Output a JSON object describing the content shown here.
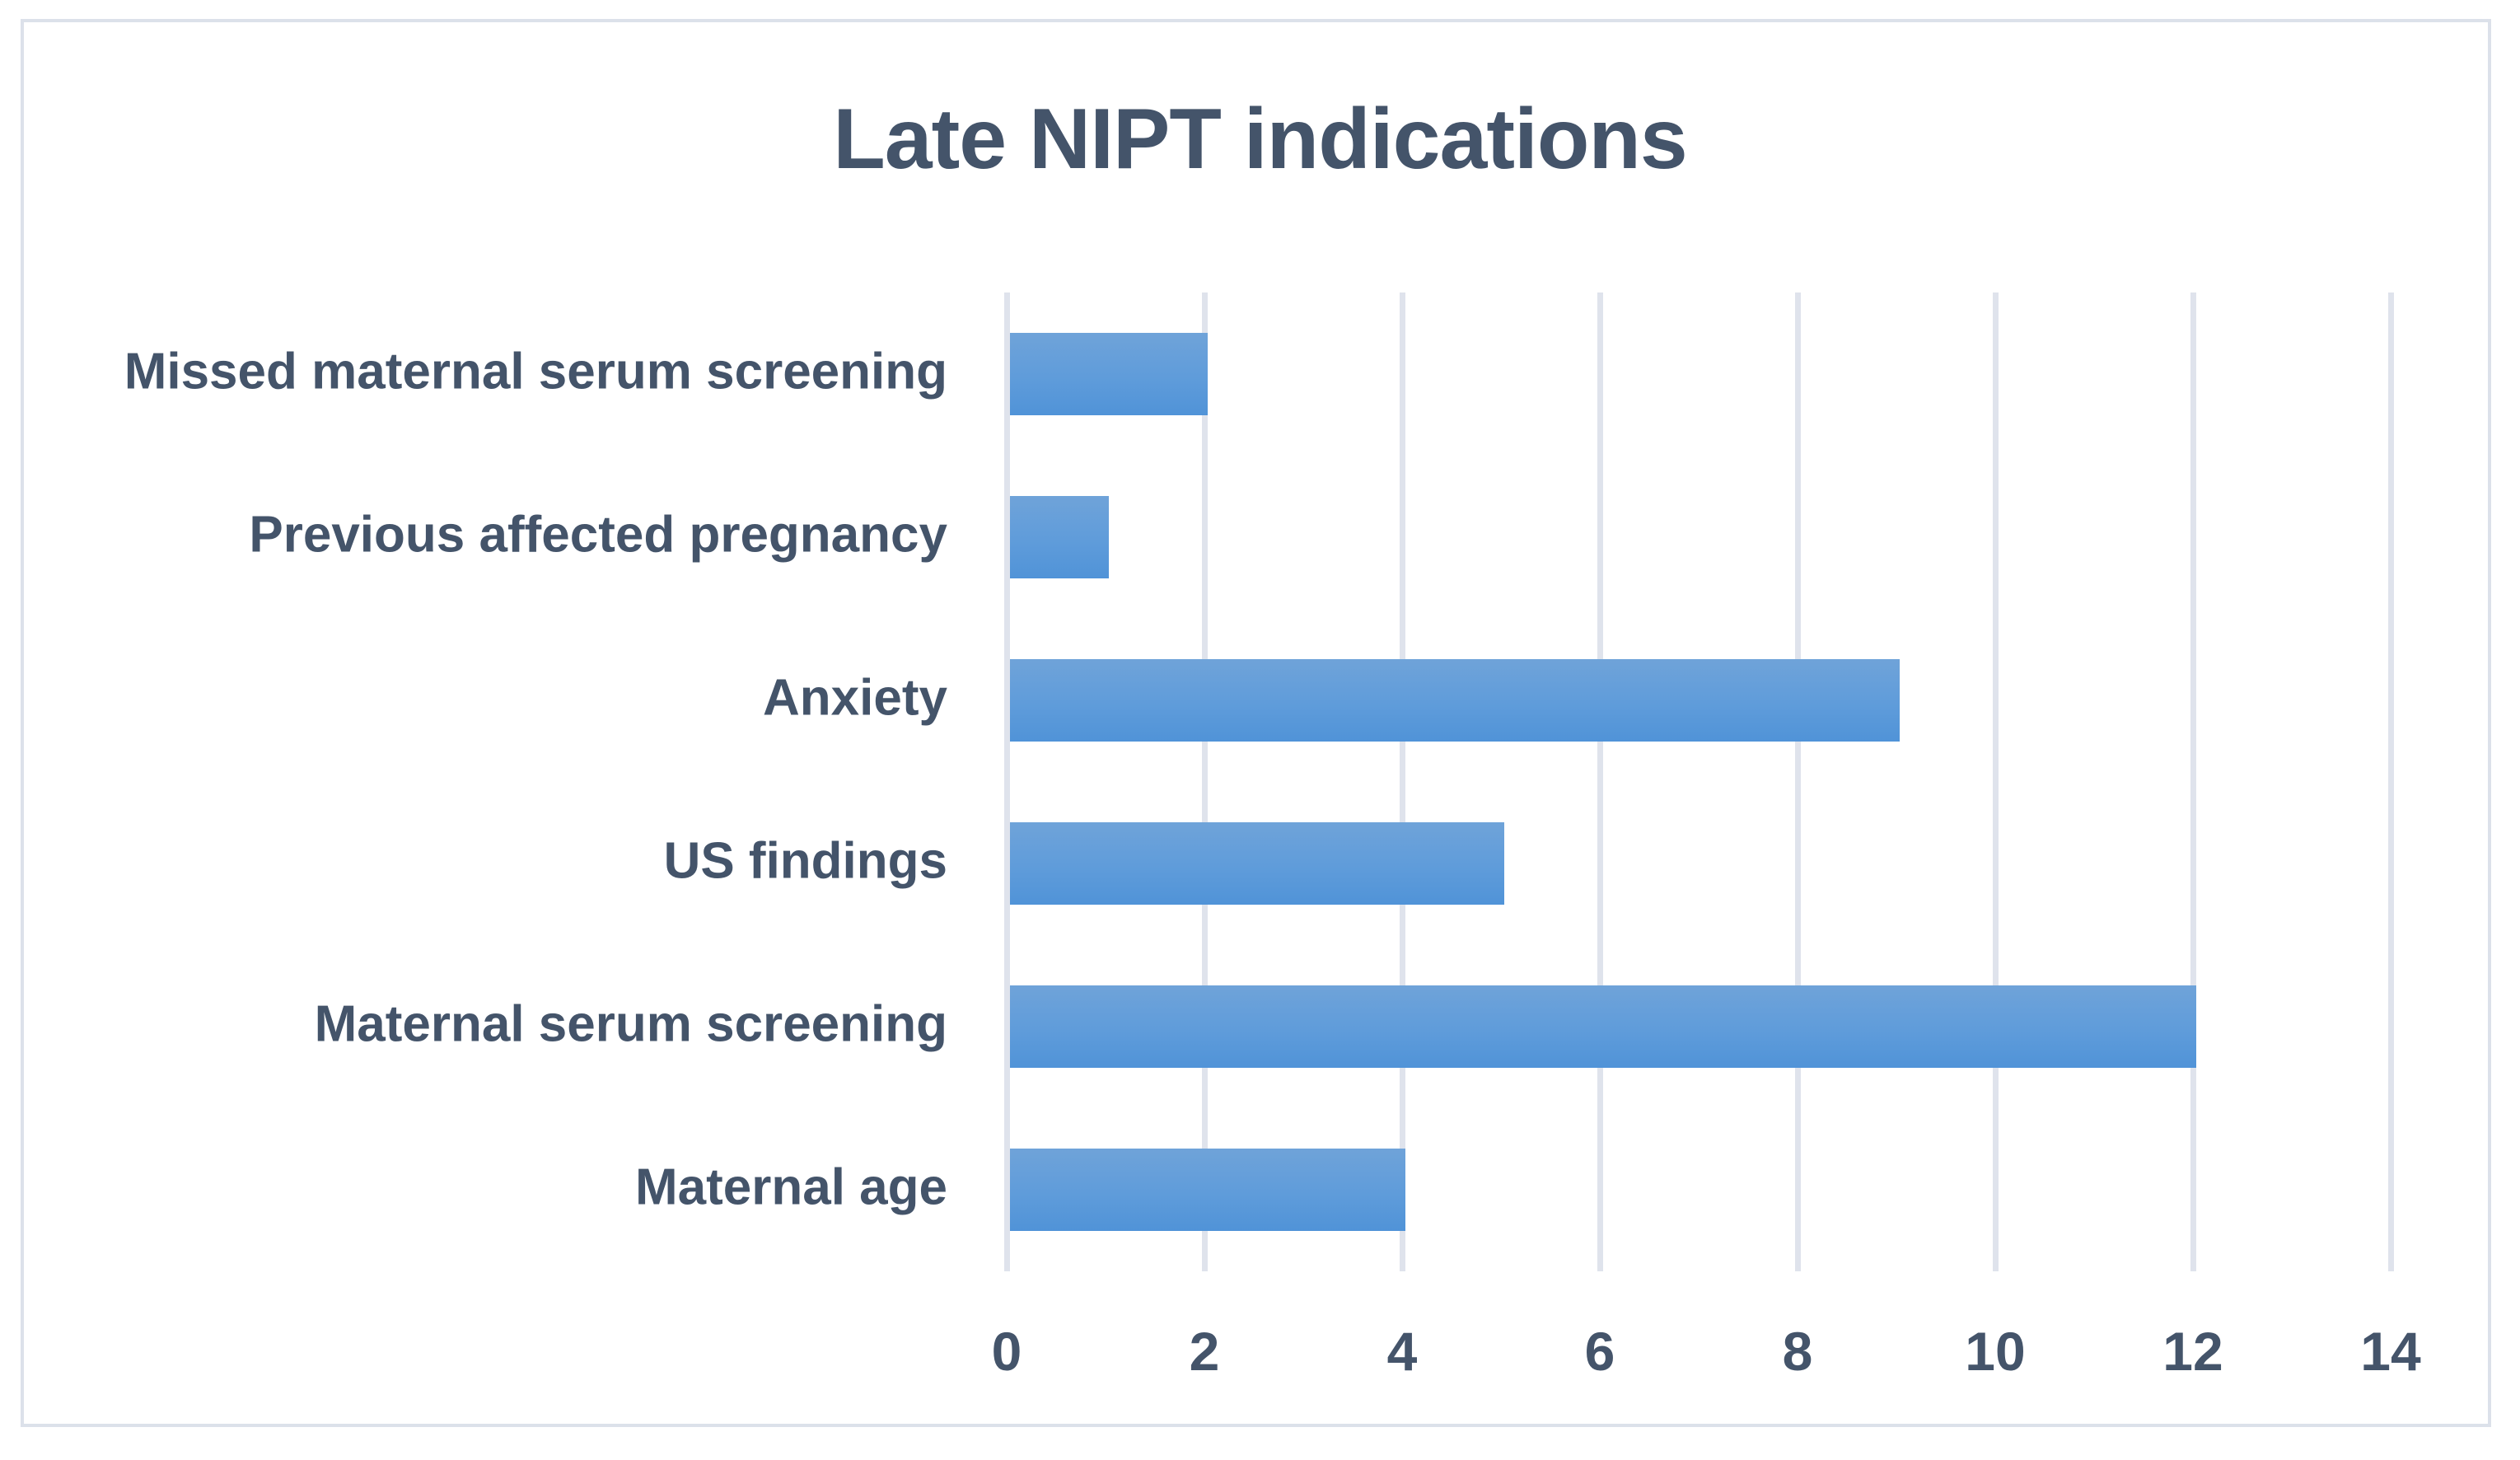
{
  "chart_data": {
    "type": "bar",
    "orientation": "horizontal",
    "title": "Late NIPT indications",
    "categories": [
      "Missed maternal serum screening",
      "Previous affected pregnancy",
      "Anxiety",
      "US findings",
      "Maternal serum screening",
      "Maternal age"
    ],
    "values": [
      2,
      1,
      9,
      5,
      12,
      4
    ],
    "xlabel": "",
    "ylabel": "",
    "xlim": [
      0,
      14
    ],
    "xticks": [
      0,
      2,
      4,
      6,
      8,
      10,
      12,
      14
    ],
    "grid": true,
    "legend": false,
    "colors": {
      "bar_gradient_top": "#6fa3d9",
      "bar_gradient_bottom": "#5093d8",
      "text": "#44546a",
      "gridline": "#dfe3ec",
      "chart_border": "#dce1ea",
      "background": "#ffffff"
    }
  }
}
